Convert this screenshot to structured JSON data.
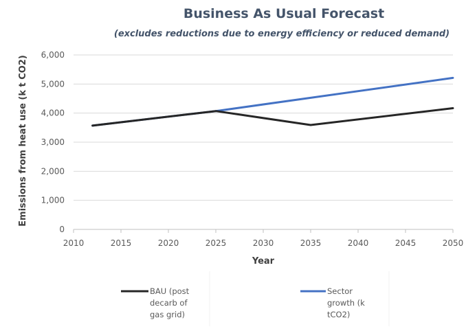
{
  "chart_data": {
    "type": "line",
    "title": "Business As Usual Forecast",
    "subtitle": "(excludes reductions due to energy efficiency or reduced demand)",
    "xlabel": "Year",
    "ylabel": "Emissions from heat use (k t CO2)",
    "xlim": [
      2010,
      2050
    ],
    "ylim": [
      0,
      6000
    ],
    "x_ticks": [
      "2010",
      "2015",
      "2020",
      "2025",
      "2030",
      "2035",
      "2040",
      "2045",
      "2050"
    ],
    "y_ticks": [
      "0",
      "1,000",
      "2,000",
      "3,000",
      "4,000",
      "5,000",
      "6,000"
    ],
    "grid": true,
    "legend_position": "bottom",
    "series": [
      {
        "name": "BAU (post decarb of gas grid)",
        "name_lines": [
          "BAU (post",
          "decarb of",
          "gas grid)"
        ],
        "color": "#262626",
        "x": [
          2012,
          2025,
          2035,
          2050
        ],
        "y": [
          3570,
          4070,
          3590,
          4170
        ]
      },
      {
        "name": "Sector growth (k tCO2)",
        "name_lines": [
          "Sector",
          "growth (k",
          "tCO2)"
        ],
        "color": "#4472c4",
        "x": [
          2012,
          2025,
          2050
        ],
        "y": [
          3570,
          4070,
          5210
        ]
      }
    ]
  }
}
